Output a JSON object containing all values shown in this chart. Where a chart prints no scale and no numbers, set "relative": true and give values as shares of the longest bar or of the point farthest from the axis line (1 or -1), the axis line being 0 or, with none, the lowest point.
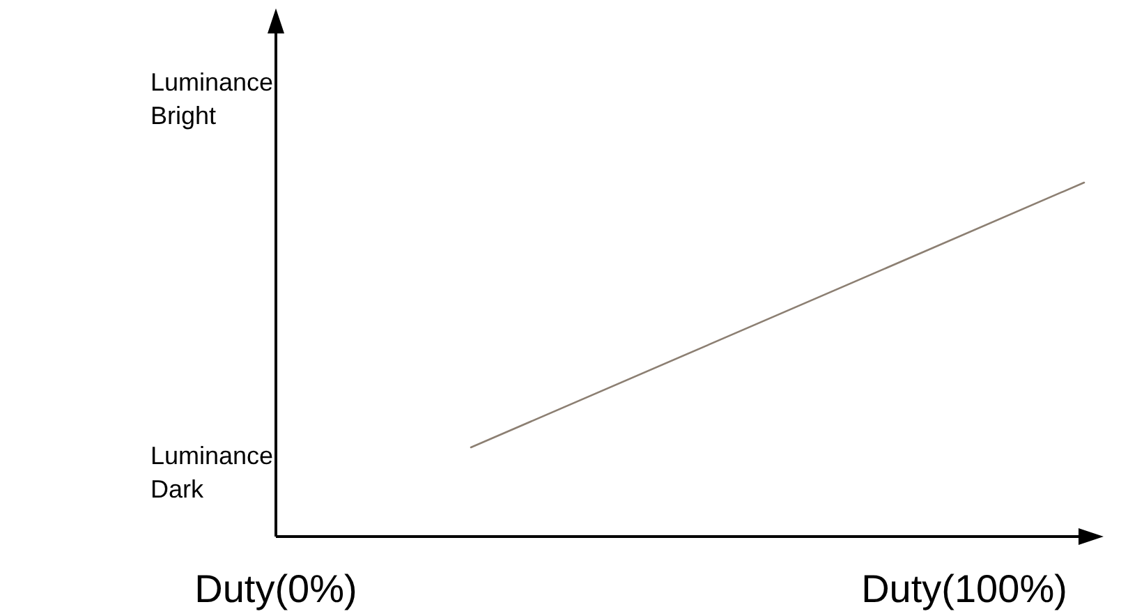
{
  "chart_data": {
    "type": "line",
    "categories": [
      null,
      null
    ],
    "relative": true,
    "series": [
      {
        "color": "#8c7f72",
        "values": [
          0.252,
          1
        ]
      }
    ],
    "annotations": [
      "Luminance Bright",
      "Luminance Dark",
      "Duty(0%)",
      "Duty(100%)"
    ],
    "grid": false,
    "marker": "none",
    "line_style": "solid"
  }
}
